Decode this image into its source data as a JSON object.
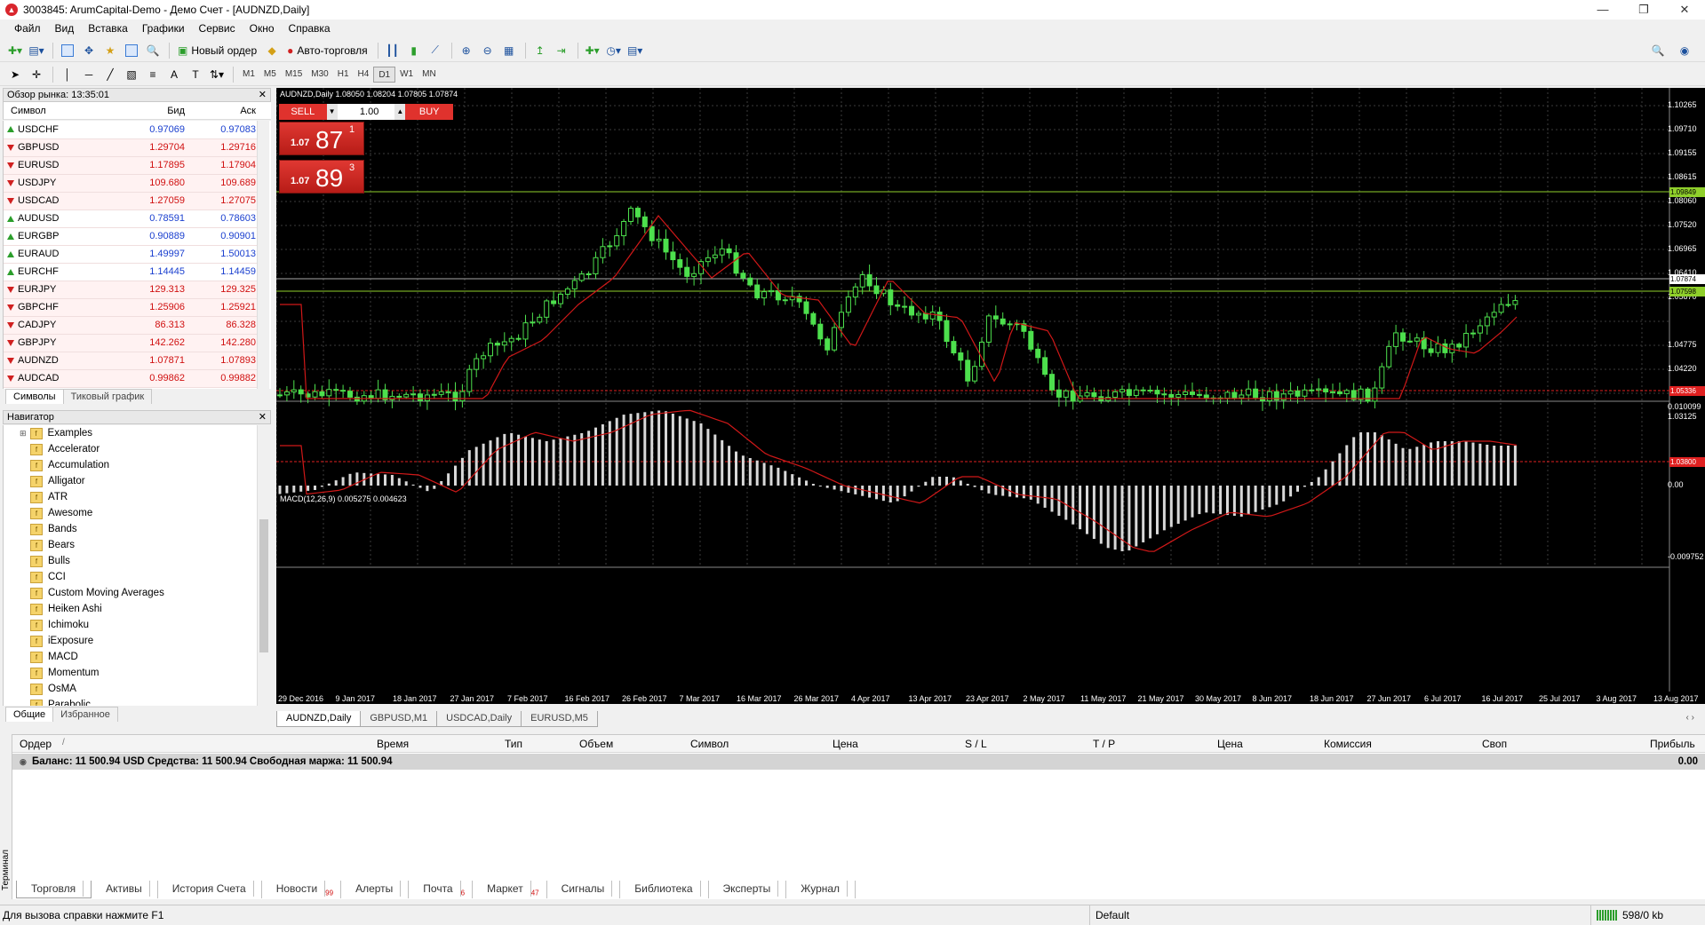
{
  "window": {
    "title": "3003845: ArumCapital-Demo - Демо Счет - [AUDNZD,Daily]"
  },
  "menu": [
    "Файл",
    "Вид",
    "Вставка",
    "Графики",
    "Сервис",
    "Окно",
    "Справка"
  ],
  "toolbar": {
    "new_order": "Новый ордер",
    "auto_trading": "Авто-торговля"
  },
  "timeframes": [
    "M1",
    "M5",
    "M15",
    "M30",
    "H1",
    "H4",
    "D1",
    "W1",
    "MN"
  ],
  "active_timeframe": "D1",
  "market_watch": {
    "title": "Обзор рынка: 13:35:01",
    "columns": {
      "symbol": "Символ",
      "bid": "Бид",
      "ask": "Аск"
    },
    "rows": [
      {
        "symbol": "USDCHF",
        "bid": "0.97069",
        "ask": "0.97083",
        "dir": "up"
      },
      {
        "symbol": "GBPUSD",
        "bid": "1.29704",
        "ask": "1.29716",
        "dir": "dn"
      },
      {
        "symbol": "EURUSD",
        "bid": "1.17895",
        "ask": "1.17904",
        "dir": "dn"
      },
      {
        "symbol": "USDJPY",
        "bid": "109.680",
        "ask": "109.689",
        "dir": "dn"
      },
      {
        "symbol": "USDCAD",
        "bid": "1.27059",
        "ask": "1.27075",
        "dir": "dn"
      },
      {
        "symbol": "AUDUSD",
        "bid": "0.78591",
        "ask": "0.78603",
        "dir": "up"
      },
      {
        "symbol": "EURGBP",
        "bid": "0.90889",
        "ask": "0.90901",
        "dir": "up"
      },
      {
        "symbol": "EURAUD",
        "bid": "1.49997",
        "ask": "1.50013",
        "dir": "up"
      },
      {
        "symbol": "EURCHF",
        "bid": "1.14445",
        "ask": "1.14459",
        "dir": "up"
      },
      {
        "symbol": "EURJPY",
        "bid": "129.313",
        "ask": "129.325",
        "dir": "dn"
      },
      {
        "symbol": "GBPCHF",
        "bid": "1.25906",
        "ask": "1.25921",
        "dir": "dn"
      },
      {
        "symbol": "CADJPY",
        "bid": "86.313",
        "ask": "86.328",
        "dir": "dn"
      },
      {
        "symbol": "GBPJPY",
        "bid": "142.262",
        "ask": "142.280",
        "dir": "dn"
      },
      {
        "symbol": "AUDNZD",
        "bid": "1.07871",
        "ask": "1.07893",
        "dir": "dn"
      },
      {
        "symbol": "AUDCAD",
        "bid": "0.99862",
        "ask": "0.99882",
        "dir": "dn"
      }
    ],
    "tabs": [
      "Символы",
      "Тиковый график"
    ]
  },
  "navigator": {
    "title": "Навигатор",
    "items": [
      "Examples",
      "Accelerator",
      "Accumulation",
      "Alligator",
      "ATR",
      "Awesome",
      "Bands",
      "Bears",
      "Bulls",
      "CCI",
      "Custom Moving Averages",
      "Heiken Ashi",
      "Ichimoku",
      "iExposure",
      "MACD",
      "Momentum",
      "OsMA",
      "Parabolic"
    ],
    "tabs": [
      "Общие",
      "Избранное"
    ]
  },
  "chart": {
    "header": "AUDNZD,Daily  1.08050 1.08204 1.07805 1.07874",
    "sell_label": "SELL",
    "buy_label": "BUY",
    "lot": "1.00",
    "sell_price": {
      "small": "1.07",
      "big": "87",
      "pip": "1"
    },
    "buy_price": {
      "small": "1.07",
      "big": "89",
      "pip": "3"
    },
    "macd_label": "MACD(12,26,9) 0.005275 0.004623",
    "price_axis": [
      "1.10265",
      "1.09710",
      "1.09155",
      "1.08615",
      "1.08060",
      "1.07520",
      "1.06965",
      "1.06410",
      "1.05870",
      "1.04775",
      "1.04220",
      "1.03125"
    ],
    "price_tags": {
      "green_top": "1.09849",
      "current": "1.07874",
      "green_low": "1.07598",
      "red_high": "1.05336",
      "red_low": "1.03800"
    },
    "macd_axis": [
      "0.010099",
      "0.00",
      "-0.009752"
    ],
    "dates": [
      "29 Dec 2016",
      "9 Jan 2017",
      "18 Jan 2017",
      "27 Jan 2017",
      "7 Feb 2017",
      "16 Feb 2017",
      "26 Feb 2017",
      "7 Mar 2017",
      "16 Mar 2017",
      "26 Mar 2017",
      "4 Apr 2017",
      "13 Apr 2017",
      "23 Apr 2017",
      "2 May 2017",
      "11 May 2017",
      "21 May 2017",
      "30 May 2017",
      "8 Jun 2017",
      "18 Jun 2017",
      "27 Jun 2017",
      "6 Jul 2017",
      "16 Jul 2017",
      "25 Jul 2017",
      "3 Aug 2017",
      "13 Aug 2017"
    ],
    "tabs": [
      "AUDNZD,Daily",
      "GBPUSD,M1",
      "USDCAD,Daily",
      "EURUSD,M5"
    ]
  },
  "terminal": {
    "columns": [
      "Ордер",
      "Время",
      "Тип",
      "Объем",
      "Символ",
      "Цена",
      "S / L",
      "T / P",
      "Цена",
      "Комиссия",
      "Своп",
      "Прибыль"
    ],
    "balance_text": "Баланс: 11 500.94 USD  Средства: 11 500.94  Свободная маржа: 11 500.94",
    "profit": "0.00",
    "side_label": "Терминал",
    "tabs": [
      {
        "label": "Торговля",
        "badge": ""
      },
      {
        "label": "Активы",
        "badge": ""
      },
      {
        "label": "История Счета",
        "badge": ""
      },
      {
        "label": "Новости",
        "badge": "99"
      },
      {
        "label": "Алерты",
        "badge": ""
      },
      {
        "label": "Почта",
        "badge": "6"
      },
      {
        "label": "Маркет",
        "badge": "47"
      },
      {
        "label": "Сигналы",
        "badge": ""
      },
      {
        "label": "Библиотека",
        "badge": ""
      },
      {
        "label": "Эксперты",
        "badge": ""
      },
      {
        "label": "Журнал",
        "badge": ""
      }
    ]
  },
  "status": {
    "help": "Для вызова справки нажмите F1",
    "profile": "Default",
    "traffic": "598/0 kb"
  }
}
